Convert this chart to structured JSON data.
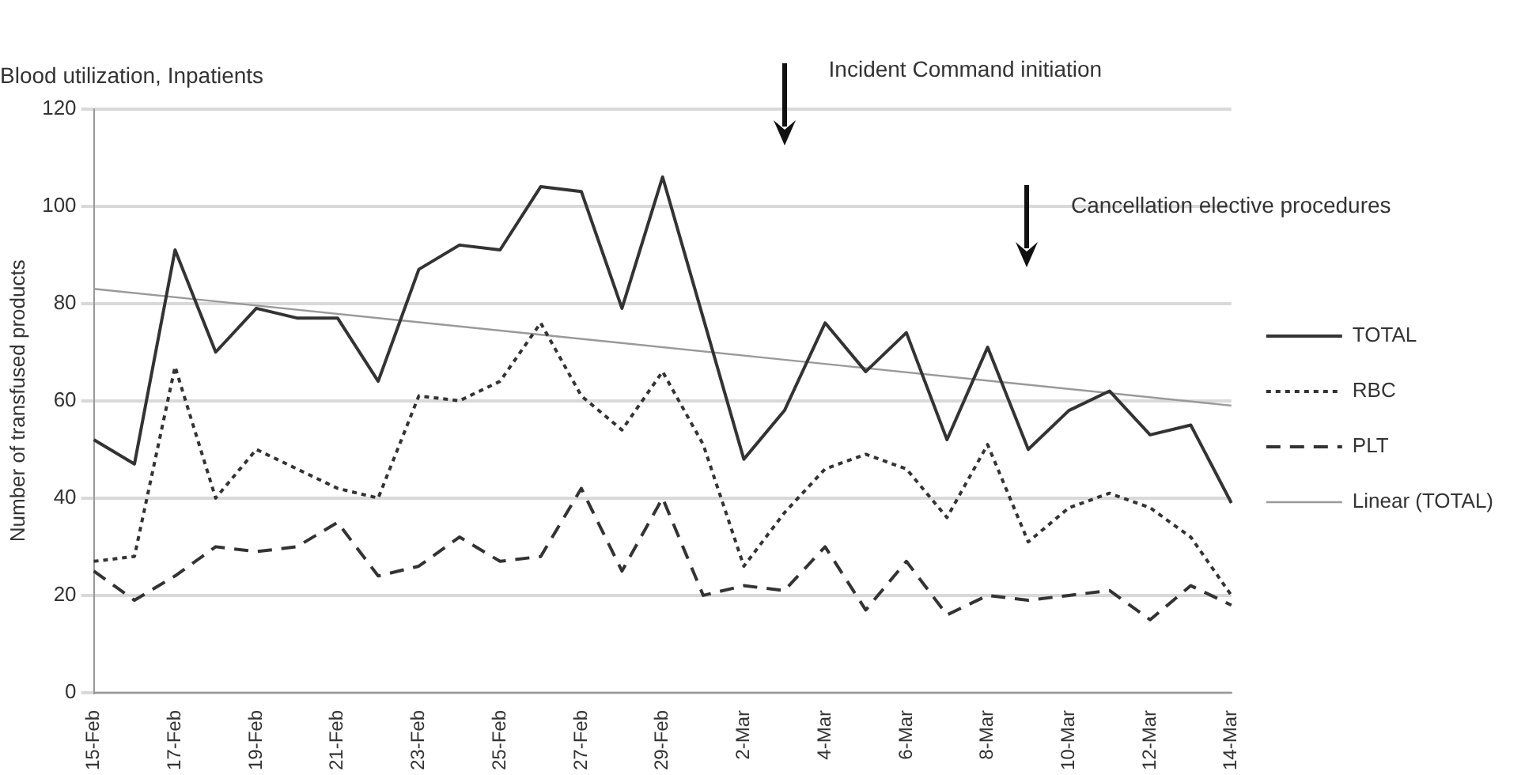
{
  "chart_data": {
    "type": "line",
    "title": "Blood utilization, Inpatients",
    "ylabel": "Number of transfused products",
    "categories": [
      "15-Feb",
      null,
      "17-Feb",
      null,
      "19-Feb",
      null,
      "21-Feb",
      null,
      "23-Feb",
      null,
      "25-Feb",
      null,
      "27-Feb",
      null,
      "29-Feb",
      null,
      "2-Mar",
      null,
      "4-Mar",
      null,
      "6-Mar",
      null,
      "8-Mar",
      null,
      "10-Mar",
      null,
      "12-Mar",
      null,
      "14-Mar"
    ],
    "series": [
      {
        "name": "TOTAL",
        "color": "#333333",
        "line_style": "solid",
        "values": [
          52,
          47,
          91,
          70,
          79,
          77,
          77,
          64,
          87,
          92,
          91,
          104,
          103,
          79,
          106,
          77,
          48,
          58,
          76,
          66,
          74,
          52,
          71,
          50,
          58,
          62,
          53,
          55,
          39
        ]
      },
      {
        "name": "RBC",
        "color": "#333333",
        "line_style": "dotted",
        "values": [
          27,
          28,
          67,
          40,
          50,
          46,
          42,
          40,
          61,
          60,
          64,
          76,
          61,
          54,
          66,
          51,
          26,
          37,
          46,
          49,
          46,
          36,
          51,
          31,
          38,
          41,
          38,
          32,
          20
        ]
      },
      {
        "name": "PLT",
        "color": "#333333",
        "line_style": "dashed",
        "values": [
          25,
          19,
          24,
          30,
          29,
          30,
          35,
          24,
          26,
          32,
          27,
          28,
          42,
          25,
          40,
          20,
          22,
          21,
          30,
          17,
          27,
          16,
          20,
          19,
          20,
          21,
          15,
          22,
          18
        ]
      },
      {
        "name": "Linear (TOTAL)",
        "color": "#999999",
        "line_style": "solid",
        "values": [
          83,
          null,
          null,
          null,
          null,
          null,
          null,
          null,
          null,
          null,
          null,
          null,
          null,
          null,
          null,
          null,
          null,
          null,
          null,
          null,
          null,
          null,
          null,
          null,
          null,
          null,
          null,
          null,
          59
        ]
      }
    ],
    "ylim": [
      0,
      120
    ],
    "yticks": [
      0,
      20,
      40,
      60,
      80,
      100,
      120
    ],
    "grid": "y",
    "legend": "right",
    "marker": "none",
    "annotations": [
      "Incident Command initiation",
      "Cancellation elective procedures"
    ]
  }
}
